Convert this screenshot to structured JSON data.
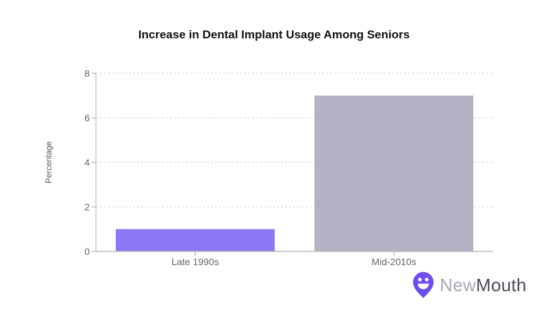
{
  "chart_data": {
    "type": "bar",
    "title": "Increase in Dental Implant Usage Among Seniors",
    "xlabel": "",
    "ylabel": "Percentage",
    "categories": [
      "Late 1990s",
      "Mid-2010s"
    ],
    "values": [
      1,
      7
    ],
    "colors": [
      "#8a78f8",
      "#b3b2c5"
    ],
    "ylim": [
      0,
      8
    ],
    "yticks": [
      0,
      2,
      4,
      6,
      8
    ],
    "grid": true
  },
  "logo": {
    "part1": "New",
    "part2": "Mouth",
    "color": "#6b4ff0"
  }
}
